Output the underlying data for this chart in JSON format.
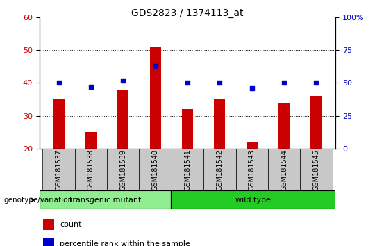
{
  "title": "GDS2823 / 1374113_at",
  "samples": [
    "GSM181537",
    "GSM181538",
    "GSM181539",
    "GSM181540",
    "GSM181541",
    "GSM181542",
    "GSM181543",
    "GSM181544",
    "GSM181545"
  ],
  "counts": [
    35,
    25,
    38,
    51,
    32,
    35,
    22,
    34,
    36
  ],
  "percentile_ranks": [
    50,
    47,
    52,
    63,
    50,
    50,
    46,
    50,
    50
  ],
  "ylim_left": [
    20,
    60
  ],
  "ylim_right": [
    0,
    100
  ],
  "yticks_left": [
    20,
    30,
    40,
    50,
    60
  ],
  "yticks_right": [
    0,
    25,
    50,
    75,
    100
  ],
  "bar_color": "#cc0000",
  "dot_color": "#0000cc",
  "transgenic_mutant_count": 4,
  "wild_type_count": 5,
  "transgenic_label": "transgenic mutant",
  "wild_type_label": "wild type",
  "transgenic_color": "#90EE90",
  "wildtype_color": "#22CC22",
  "tick_bg_color": "#C8C8C8",
  "legend_count_label": "count",
  "legend_pct_label": "percentile rank within the sample",
  "xlabel_left": "genotype/variation",
  "left_axis_color": "#cc0000",
  "right_axis_color": "#0000cc"
}
